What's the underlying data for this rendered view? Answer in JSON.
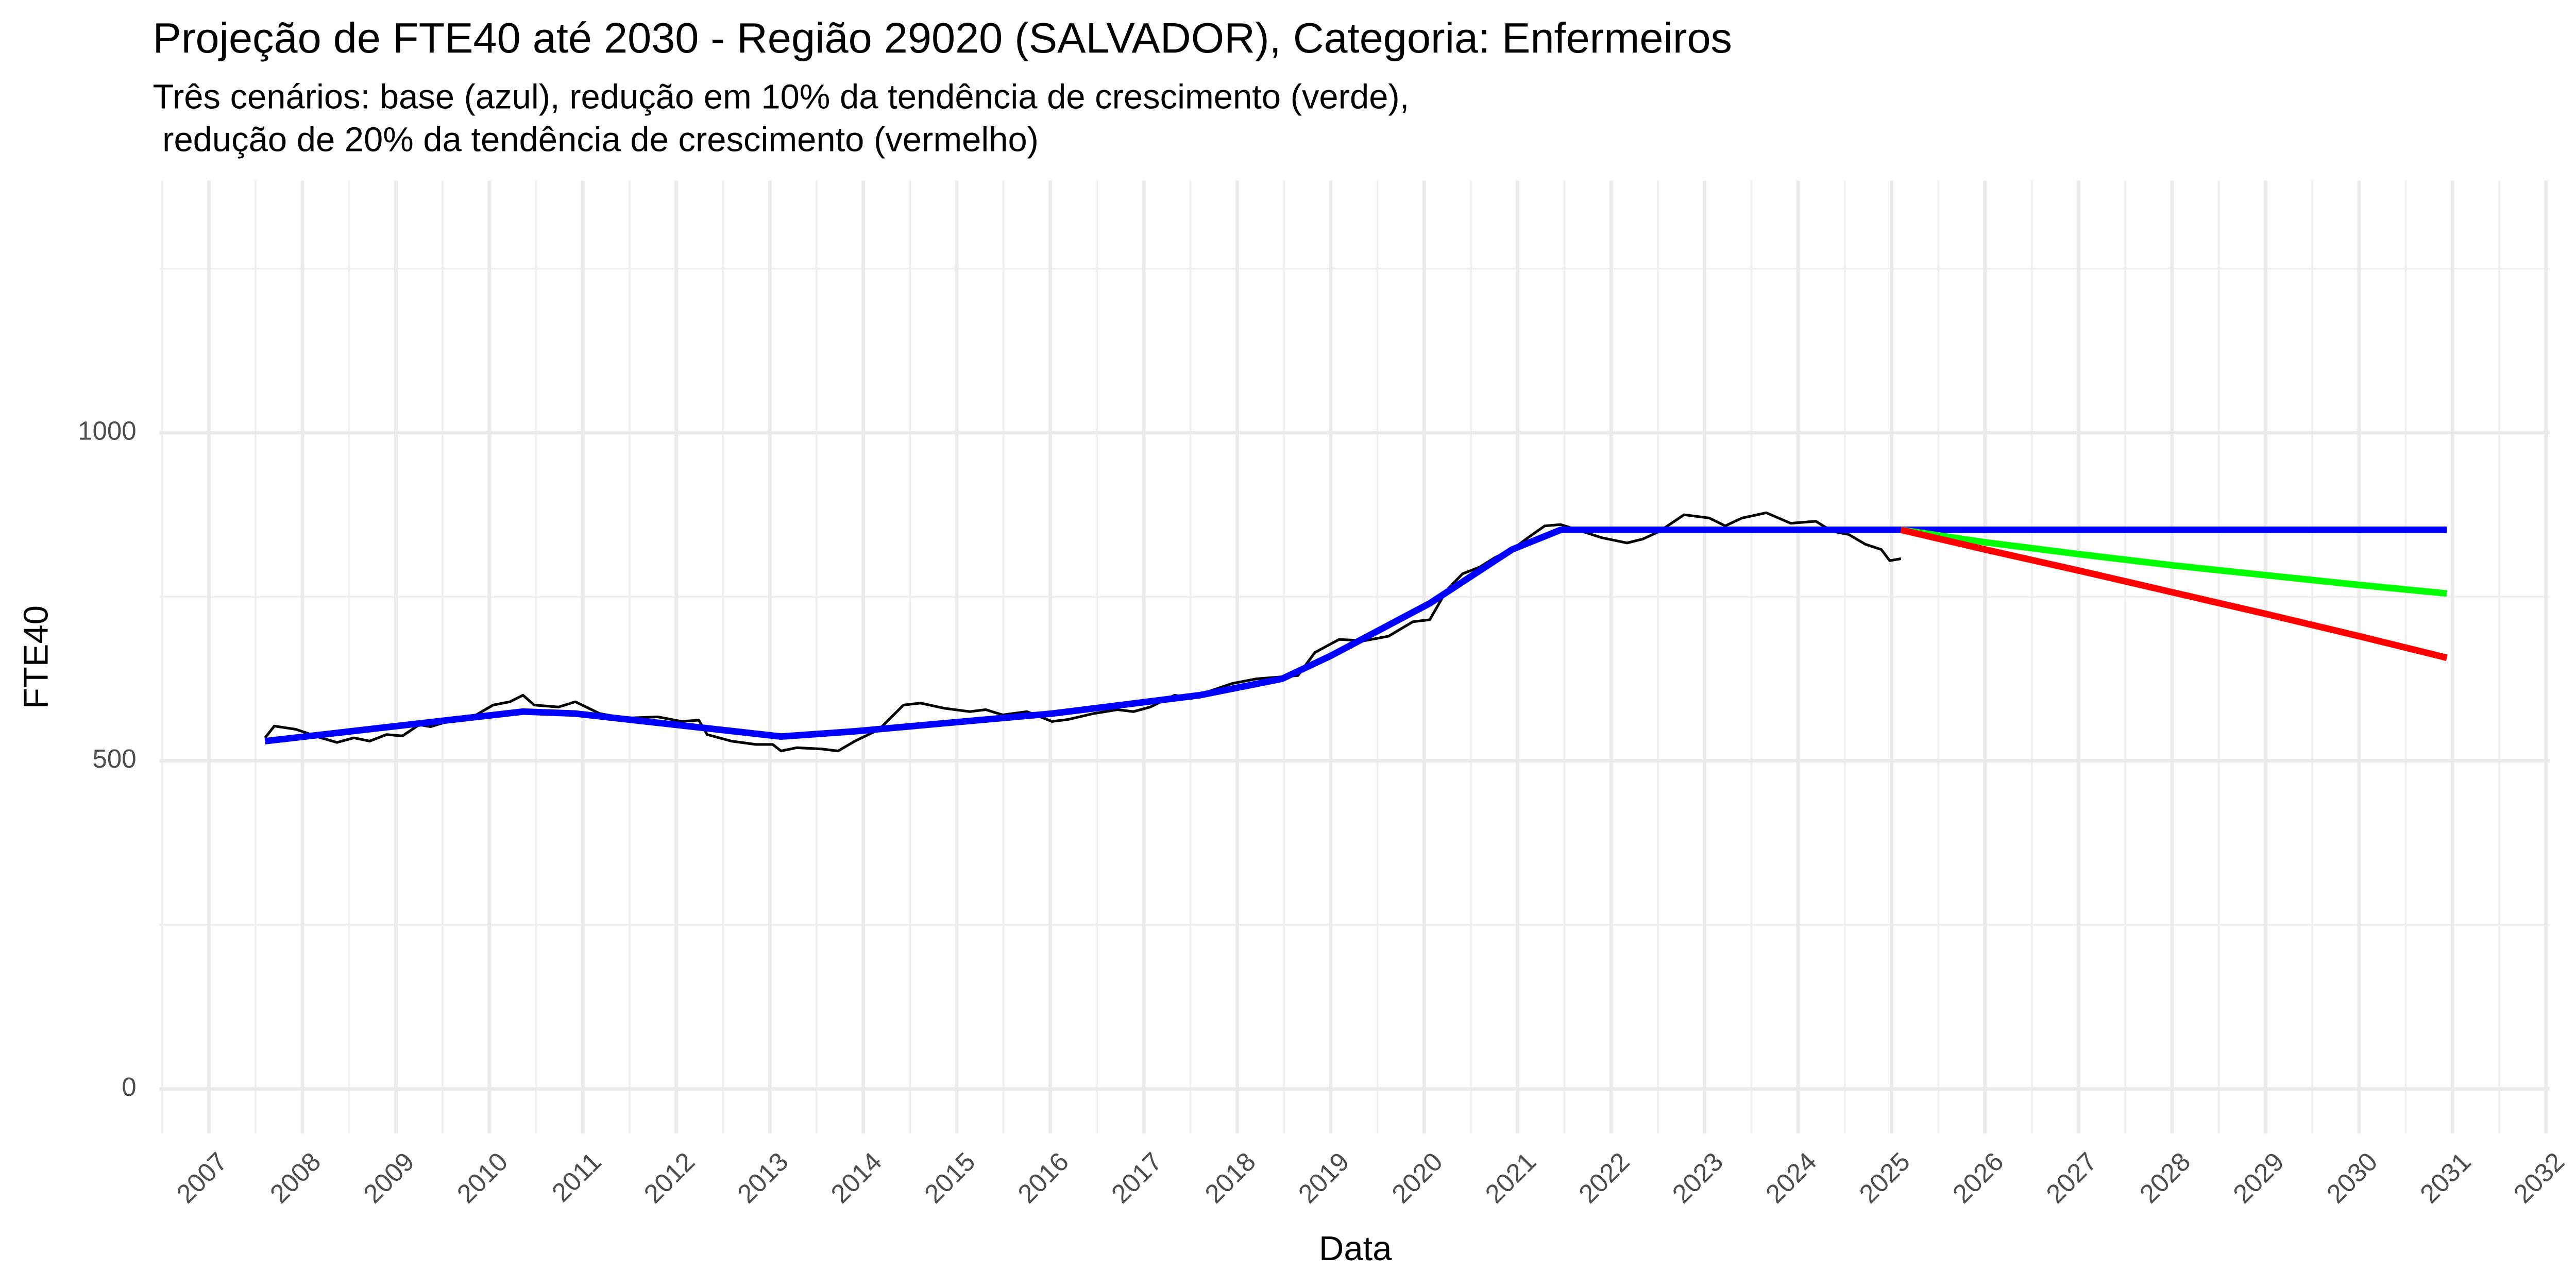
{
  "chart_data": {
    "type": "line",
    "title": "Projeção de FTE40 até 2030 - Região 29020 (SALVADOR), Categoria: Enfermeiros",
    "subtitle": [
      "Três cenários: base (azul), redução em 10% da tendência de crescimento (verde),",
      " redução de 20% da tendência de crescimento (vermelho)"
    ],
    "x_label": "Data",
    "y_label": "FTE40",
    "xlim": [
      2006.47,
      2032.04
    ],
    "xticks": [
      2007,
      2008,
      2009,
      2010,
      2011,
      2012,
      2013,
      2014,
      2015,
      2016,
      2017,
      2018,
      2019,
      2020,
      2021,
      2022,
      2023,
      2024,
      2025,
      2026,
      2027,
      2028,
      2029,
      2030,
      2031,
      2032
    ],
    "ylim": [
      -68,
      1384
    ],
    "yticks": [
      0,
      500,
      1000
    ],
    "grid": true,
    "minor_grid": true,
    "series": [
      {
        "color": "#000000",
        "width": 1.6,
        "x": [
          2007.6,
          2007.7,
          2007.93,
          2008.2,
          2008.37,
          2008.55,
          2008.72,
          2008.9,
          2009.07,
          2009.25,
          2009.37,
          2009.6,
          2009.86,
          2010.04,
          2010.22,
          2010.36,
          2010.48,
          2010.74,
          2010.92,
          2011.18,
          2011.45,
          2011.8,
          2012.06,
          2012.24,
          2012.33,
          2012.59,
          2012.85,
          2013.03,
          2013.12,
          2013.29,
          2013.56,
          2013.73,
          2013.91,
          2014.17,
          2014.43,
          2014.61,
          2014.87,
          2015.14,
          2015.31,
          2015.49,
          2015.75,
          2016.02,
          2016.19,
          2016.46,
          2016.72,
          2016.89,
          2017.07,
          2017.33,
          2017.51,
          2017.68,
          2017.95,
          2018.21,
          2018.48,
          2018.65,
          2018.83,
          2019.09,
          2019.36,
          2019.62,
          2019.88,
          2020.06,
          2020.24,
          2020.41,
          2020.59,
          2020.76,
          2020.94,
          2021.11,
          2021.29,
          2021.46,
          2021.64,
          2021.9,
          2022.17,
          2022.34,
          2022.52,
          2022.78,
          2023.05,
          2023.22,
          2023.4,
          2023.66,
          2023.92,
          2024.19,
          2024.36,
          2024.54,
          2024.72,
          2024.89,
          2024.98,
          2025.1
        ],
        "values": [
          535,
          553,
          548,
          535,
          528,
          535,
          530,
          540,
          538,
          555,
          552,
          562,
          570,
          585,
          590,
          600,
          585,
          582,
          590,
          572,
          565,
          567,
          560,
          562,
          540,
          530,
          525,
          525,
          515,
          520,
          518,
          515,
          530,
          548,
          585,
          588,
          580,
          575,
          578,
          570,
          575,
          560,
          563,
          572,
          578,
          575,
          582,
          600,
          595,
          605,
          618,
          625,
          628,
          630,
          665,
          685,
          683,
          690,
          712,
          715,
          760,
          785,
          795,
          810,
          822,
          840,
          858,
          860,
          852,
          840,
          832,
          838,
          850,
          875,
          870,
          858,
          870,
          878,
          862,
          865,
          850,
          845,
          830,
          822,
          805,
          808
        ]
      },
      {
        "color": "#0000ff",
        "width": 4,
        "x": [
          2007.6,
          2010.36,
          2010.92,
          2013.12,
          2013.91,
          2016.02,
          2017.6,
          2018.48,
          2019.0,
          2020.06,
          2020.94,
          2021.46,
          2025.1,
          2030.94
        ],
        "values": [
          530,
          575,
          572,
          537,
          545,
          572,
          600,
          625,
          660,
          740,
          822,
          852,
          852,
          852
        ]
      },
      {
        "color": "#00ff00",
        "width": 4,
        "x": [
          2025.1,
          2026,
          2027,
          2028,
          2029,
          2030,
          2030.94
        ],
        "values": [
          852,
          833,
          815,
          798,
          783,
          768,
          755
        ]
      },
      {
        "color": "#ff0000",
        "width": 4,
        "x": [
          2025.1,
          2026,
          2027,
          2028,
          2029,
          2030,
          2030.94
        ],
        "values": [
          852,
          822,
          790,
          757,
          724,
          690,
          657
        ]
      }
    ]
  }
}
